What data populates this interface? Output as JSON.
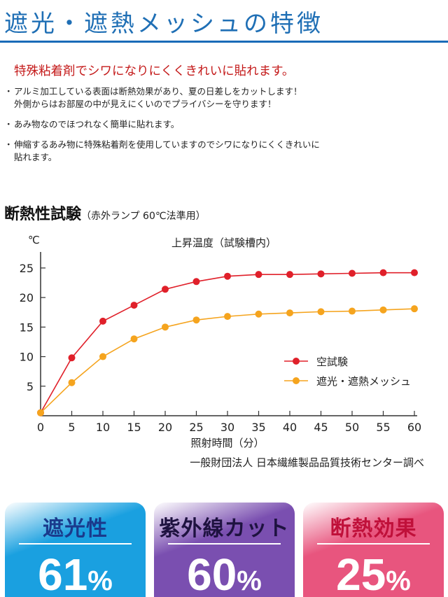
{
  "header": {
    "title": "遮光・遮熱メッシュの特徴"
  },
  "lead": "特殊粘着剤でシワになりにくくきれいに貼れます。",
  "bullets": [
    {
      "lines": [
        "アルミ加工している表面は断熱効果があり、夏の日差しをカットします！",
        "外側からはお部屋の中が見えにくいのでプライバシーを守ります！"
      ]
    },
    {
      "lines": [
        "あみ物なのでほつれなく簡単に貼れます。"
      ]
    },
    {
      "lines": [
        "伸縮するあみ物に特殊粘着剤を使用していますのでシワになりにくくきれいに",
        "貼れます。"
      ]
    }
  ],
  "bullet_marker": "・",
  "section": {
    "title": "断熱性試験",
    "subtitle": "（赤外ランプ 60℃法準用）"
  },
  "chart_data": {
    "type": "line",
    "title": "上昇温度（試験槽内）",
    "ylabel": "℃",
    "xlabel": "照射時間（分）",
    "x": [
      0,
      5,
      10,
      15,
      20,
      25,
      30,
      35,
      40,
      45,
      50,
      55,
      60
    ],
    "xlim": [
      0,
      60
    ],
    "ylim": [
      0,
      27
    ],
    "yticks": [
      5,
      10,
      15,
      20,
      25
    ],
    "xticks": [
      0,
      5,
      10,
      15,
      20,
      25,
      30,
      35,
      40,
      45,
      50,
      55,
      60
    ],
    "grid": false,
    "legend_position": "right",
    "source": "一般財団法人 日本繊維製品品質技術センター調べ",
    "series": [
      {
        "name": "空試験",
        "color": "#e0202a",
        "values": [
          0.5,
          9.8,
          16.0,
          18.7,
          21.4,
          22.7,
          23.6,
          23.9,
          23.9,
          24.0,
          24.1,
          24.2,
          24.2
        ]
      },
      {
        "name": "遮光・遮熱メッシュ",
        "color": "#f5a41e",
        "values": [
          0.5,
          5.6,
          10.0,
          13.0,
          15.0,
          16.2,
          16.8,
          17.2,
          17.4,
          17.6,
          17.7,
          17.9,
          18.1
        ]
      }
    ]
  },
  "badges": [
    {
      "label": "遮光性",
      "value": "61",
      "unit": "%",
      "bg": "#1aa0e0",
      "label_color": "#1a3a8c"
    },
    {
      "label": "紫外線カット",
      "value": "60",
      "unit": "%",
      "bg": "#7a4fb0",
      "label_color": "#1e1240"
    },
    {
      "label": "断熱効果",
      "value": "25",
      "unit": "%",
      "bg": "#e8557e",
      "label_color": "#c0103a"
    }
  ]
}
